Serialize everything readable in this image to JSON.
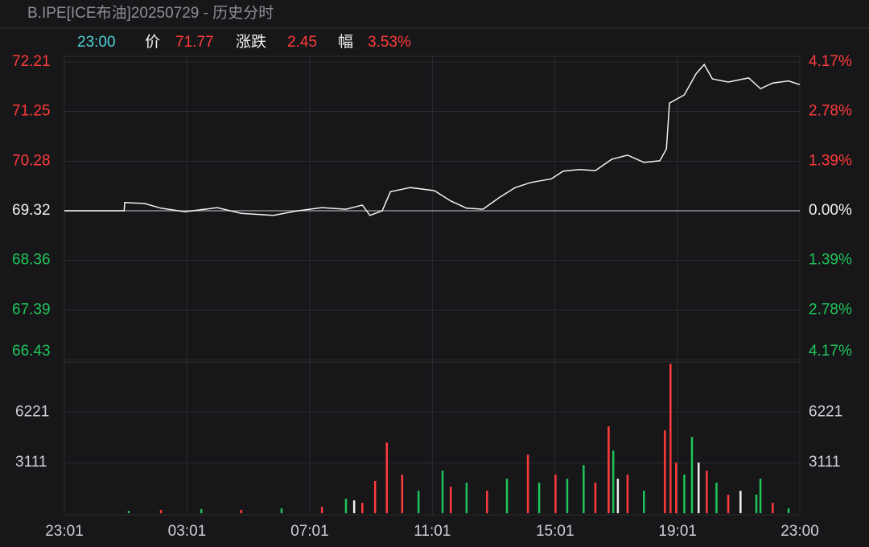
{
  "header": {
    "title": "B.IPE[ICE布油]20250729 - 历史分时",
    "time": "23:00",
    "price_label": "价",
    "price": 71.77,
    "change_label": "涨跌",
    "change": 2.45,
    "pct_label": "幅",
    "pct": "3.53%"
  },
  "chart_data": [
    {
      "type": "line",
      "color": "#f2f2f2",
      "x": [
        "23:01",
        "00:58",
        "00:59",
        "01:38",
        "02:10",
        "02:57",
        "04:00",
        "04:47",
        "05:50",
        "06:38",
        "07:25",
        "08:12",
        "08:44",
        "08:59",
        "09:23",
        "09:39",
        "10:18",
        "11:05",
        "11:37",
        "12:08",
        "12:40",
        "13:11",
        "13:43",
        "14:14",
        "14:54",
        "15:17",
        "15:49",
        "16:20",
        "16:52",
        "17:23",
        "17:55",
        "18:26",
        "18:39",
        "18:45",
        "19:14",
        "19:37",
        "19:53",
        "20:09",
        "20:40",
        "21:20",
        "21:43",
        "22:07",
        "22:38",
        "23:00"
      ],
      "values": [
        69.32,
        69.32,
        69.48,
        69.46,
        69.37,
        69.3,
        69.38,
        69.27,
        69.23,
        69.32,
        69.38,
        69.35,
        69.43,
        69.23,
        69.32,
        69.69,
        69.77,
        69.71,
        69.51,
        69.37,
        69.35,
        69.57,
        69.77,
        69.87,
        69.94,
        70.09,
        70.12,
        70.1,
        70.32,
        70.4,
        70.26,
        70.29,
        70.52,
        71.41,
        71.57,
        71.98,
        72.16,
        71.88,
        71.82,
        71.9,
        71.69,
        71.8,
        71.84,
        71.77
      ],
      "ylim": [
        66.43,
        72.21
      ],
      "yticks": [
        72.21,
        71.25,
        70.28,
        69.32,
        68.36,
        67.39,
        66.43
      ],
      "y2lim": [
        -4.17,
        4.17
      ],
      "y2ticks": [
        {
          "value": 4.17,
          "label": "4.17%"
        },
        {
          "value": 2.78,
          "label": "2.78%"
        },
        {
          "value": 1.39,
          "label": "1.39%"
        },
        {
          "value": 0,
          "label": "0.00%"
        },
        {
          "value": -1.39,
          "label": "1.39%"
        },
        {
          "value": -2.78,
          "label": "2.78%"
        },
        {
          "value": -4.17,
          "label": "4.17%"
        }
      ],
      "xticks": [
        "23:01",
        "03:01",
        "07:01",
        "11:01",
        "15:01",
        "19:01",
        "23:00"
      ],
      "grid": true
    },
    {
      "type": "bar",
      "x": [
        "01:07",
        "02:10",
        "03:29",
        "04:47",
        "06:06",
        "07:25",
        "08:12",
        "08:28",
        "08:44",
        "09:09",
        "09:32",
        "10:02",
        "10:34",
        "11:21",
        "11:37",
        "12:08",
        "12:48",
        "13:27",
        "14:08",
        "14:30",
        "15:02",
        "15:25",
        "15:57",
        "16:20",
        "16:46",
        "16:55",
        "17:04",
        "17:23",
        "17:55",
        "18:36",
        "18:47",
        "18:58",
        "19:14",
        "19:29",
        "19:42",
        "19:58",
        "20:17",
        "20:40",
        "21:04",
        "21:35",
        "21:43",
        "22:07",
        "22:38"
      ],
      "values": [
        150,
        200,
        250,
        200,
        300,
        400,
        890,
        790,
        640,
        1980,
        4350,
        2370,
        1380,
        2620,
        1630,
        1880,
        1380,
        2120,
        3600,
        1880,
        2370,
        2120,
        2960,
        1880,
        5340,
        3850,
        2120,
        2370,
        1380,
        5090,
        9190,
        3110,
        2370,
        4690,
        3110,
        2620,
        1880,
        1140,
        1380,
        1140,
        2120,
        640,
        300
      ],
      "colors": [
        "#1fc45a",
        "#ff3b3b",
        "#1fc45a",
        "#ff3b3b",
        "#1fc45a",
        "#ff3b3b",
        "#1fc45a",
        "#f2f2f2",
        "#ff3b3b",
        "#ff3b3b",
        "#ff3b3b",
        "#ff3b3b",
        "#1fc45a",
        "#1fc45a",
        "#ff3b3b",
        "#1fc45a",
        "#ff3b3b",
        "#1fc45a",
        "#ff3b3b",
        "#1fc45a",
        "#ff3b3b",
        "#1fc45a",
        "#1fc45a",
        "#ff3b3b",
        "#ff3b3b",
        "#1fc45a",
        "#f2f2f2",
        "#ff3b3b",
        "#1fc45a",
        "#ff3b3b",
        "#ff3b3b",
        "#ff3b3b",
        "#1fc45a",
        "#1fc45a",
        "#f2f2f2",
        "#ff3b3b",
        "#1fc45a",
        "#ff3b3b",
        "#f2f2f2",
        "#1fc45a",
        "#1fc45a",
        "#ff3b3b",
        "#1fc45a"
      ],
      "ylim": [
        0,
        9300
      ],
      "yticks": [
        3111,
        6221
      ]
    }
  ]
}
